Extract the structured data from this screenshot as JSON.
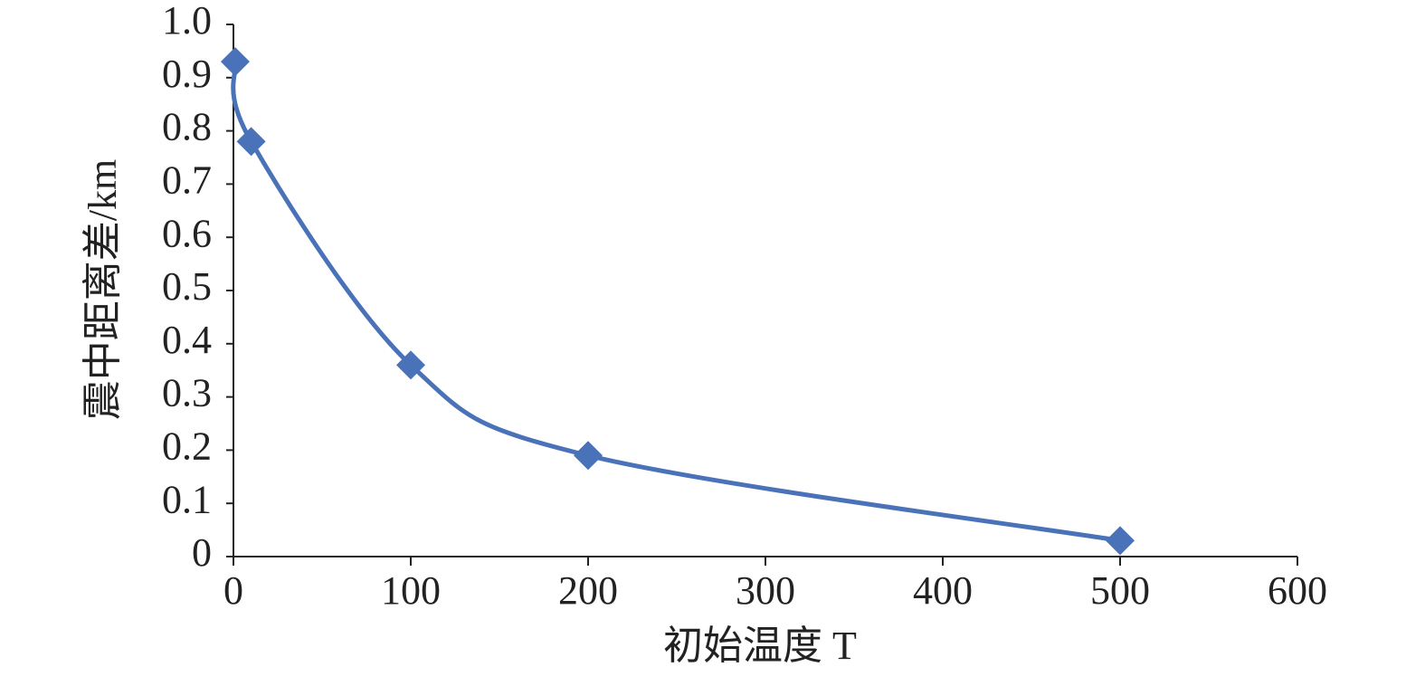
{
  "chart_data": {
    "type": "line",
    "x_label": "初始温度 T",
    "y_label": "震中距离差/km",
    "x": [
      1,
      10,
      100,
      200,
      500
    ],
    "series": [
      {
        "color": "#4a72b8",
        "values": [
          0.93,
          0.78,
          0.36,
          0.19,
          0.03
        ]
      }
    ],
    "xlim": [
      0,
      600
    ],
    "xticks": [
      0,
      100,
      200,
      300,
      400,
      500,
      600
    ],
    "ylim": [
      0,
      1
    ],
    "yticks": [
      0,
      0.1,
      0.2,
      0.3,
      0.4,
      0.5,
      0.6,
      0.7,
      0.8,
      0.9,
      {
        "value": 1,
        "label": "1.0"
      }
    ],
    "smooth": true,
    "marker": "diamond"
  }
}
